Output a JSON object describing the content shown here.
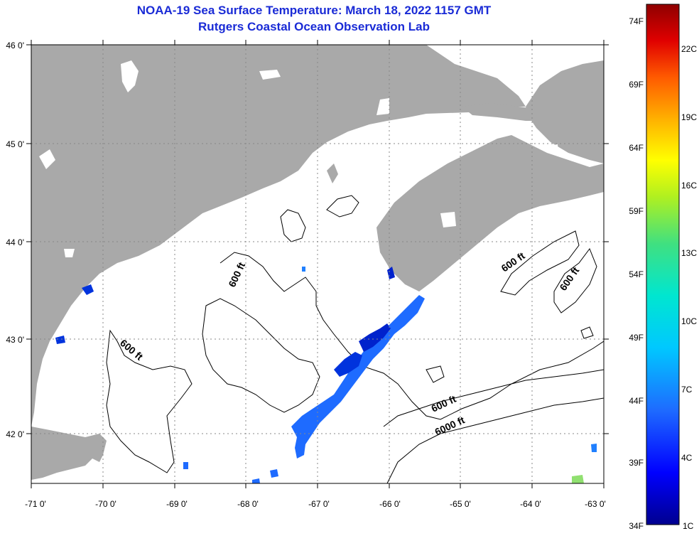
{
  "title": "NOAA-19 Sea Surface Temperature:  March 18, 2022 1157 GMT",
  "subtitle": "Rutgers Coastal Ocean Observation Lab",
  "colors": {
    "land": "#a9a9a9",
    "ocean": "#ffffff",
    "contour": "#000000",
    "title": "#1a2bd6"
  },
  "axes": {
    "lon_ticks": [
      "-71 0'",
      "-70 0'",
      "-69 0'",
      "-68 0'",
      "-67 0'",
      "-66 0'",
      "-65 0'",
      "-64 0'",
      "-63 0'"
    ],
    "lat_ticks": [
      "46 0'",
      "45 0'",
      "44 0'",
      "43 0'",
      "42 0'"
    ]
  },
  "contour_labels": [
    "600 ft",
    "600 ft",
    "600 ft",
    "600 ft",
    "600 ft",
    "6000 ft"
  ],
  "colorbar": {
    "fahrenheit": [
      "74F",
      "69F",
      "64F",
      "59F",
      "54F",
      "49F",
      "44F",
      "39F",
      "34F"
    ],
    "celsius": [
      "22C",
      "19C",
      "16C",
      "13C",
      "10C",
      "7C",
      "4C",
      "1C"
    ]
  }
}
